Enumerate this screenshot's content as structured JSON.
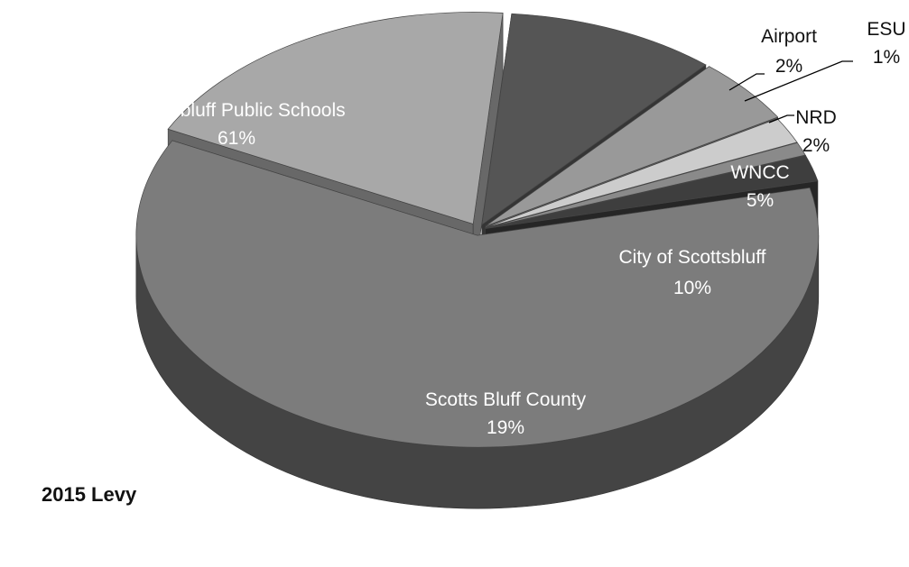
{
  "chart_data": {
    "type": "pie",
    "title": "",
    "caption": "2015 Levy",
    "exploded": true,
    "three_d": true,
    "slices": [
      {
        "label": "Scottsbluff Public Schools",
        "value_label": "61%",
        "value": 61,
        "color": "#7c7c7c"
      },
      {
        "label": "Scotts Bluff County",
        "value_label": "19%",
        "value": 19,
        "color": "#a8a8a8"
      },
      {
        "label": "City of Scottsbluff",
        "value_label": "10%",
        "value": 10,
        "color": "#555555"
      },
      {
        "label": "WNCC",
        "value_label": "5%",
        "value": 5,
        "color": "#999999"
      },
      {
        "label": "NRD",
        "value_label": "2%",
        "value": 2,
        "color": "#cccccc"
      },
      {
        "label": "ESU",
        "value_label": "1%",
        "value": 1,
        "color": "#8a8a8a"
      },
      {
        "label": "Airport",
        "value_label": "2%",
        "value": 2,
        "color": "#3e3e3e"
      }
    ]
  }
}
